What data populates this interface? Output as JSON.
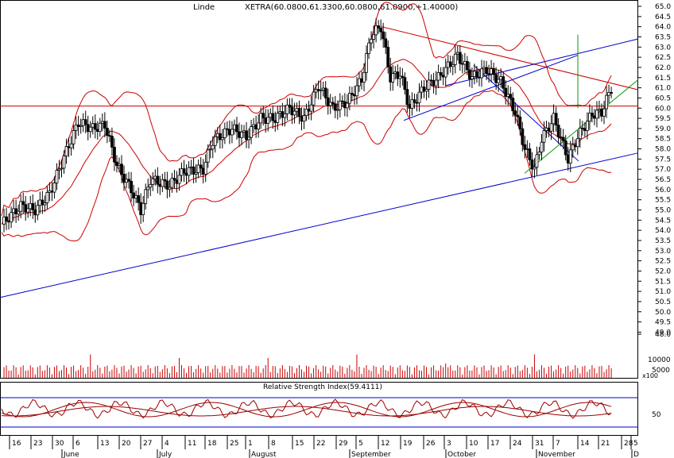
{
  "header": {
    "symbol": "Linde",
    "quote": "XETRA(60.0800,61.3300,60.0800,61.0900,+1.40000)"
  },
  "colors": {
    "price": "#000000",
    "bands": "#cc0000",
    "trend_blue": "#0000cc",
    "trend_green": "#009900",
    "volume": "#cc0000",
    "rsi": "#990000"
  },
  "chart_data": [
    {
      "type": "candlestick",
      "title": "Linde",
      "subtitle": "XETRA(60.0800,61.3300,60.0800,61.0900,+1.40000)",
      "y_axis": {
        "ticks": [
          "65.0",
          "64.5",
          "64.0",
          "63.5",
          "63.0",
          "62.5",
          "62.0",
          "61.5",
          "61.0",
          "60.5",
          "60.0",
          "59.5",
          "59.0",
          "58.5",
          "58.0",
          "57.5",
          "57.0",
          "56.5",
          "56.0",
          "55.5",
          "55.0",
          "54.5",
          "54.0",
          "53.5",
          "53.0",
          "52.5",
          "52.0",
          "51.5",
          "51.0",
          "50.5",
          "50.0",
          "49.5",
          "49.0",
          "48.0"
        ],
        "range": [
          48.0,
          65.0
        ]
      },
      "x_axis": {
        "day_ticks": [
          "16",
          "23",
          "30",
          "6",
          "13",
          "20",
          "27",
          "4",
          "11",
          "18",
          "25",
          "1",
          "8",
          "15",
          "22",
          "29",
          "5",
          "12",
          "19",
          "26",
          "3",
          "10",
          "17",
          "24",
          "31",
          "7",
          "14",
          "21",
          "28",
          "5"
        ],
        "month_labels": [
          "June",
          "July",
          "August",
          "September",
          "October",
          "November",
          "D"
        ]
      },
      "overlays": [
        "Bollinger bands",
        "moving average",
        "trend lines",
        "horizontal line 60.1"
      ],
      "grid": false
    },
    {
      "type": "bar",
      "title": "Volume",
      "y_axis": {
        "ticks": [
          "10000",
          "5000"
        ],
        "unit_label": "x100"
      }
    },
    {
      "type": "line",
      "title": "Relative Strength Index(59.4111)",
      "y_axis": {
        "ticks": [
          "50"
        ]
      }
    }
  ]
}
